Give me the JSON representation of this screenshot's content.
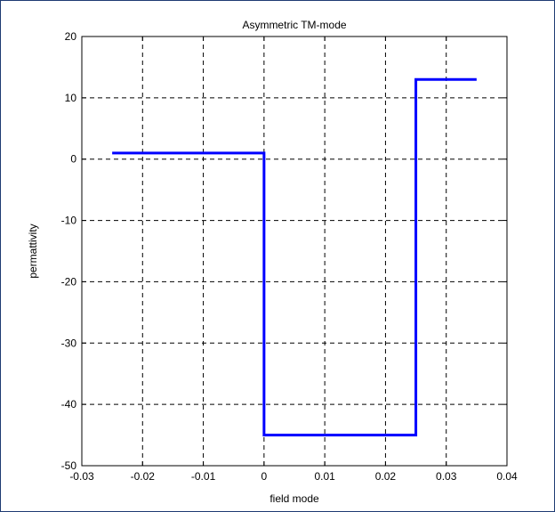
{
  "chart_data": {
    "type": "line",
    "title": "Asymmetric TM-mode",
    "xlabel": "field mode",
    "ylabel": "permattivity",
    "xlim": [
      -0.03,
      0.04
    ],
    "ylim": [
      -50,
      20
    ],
    "xticks": [
      -0.03,
      -0.02,
      -0.01,
      0,
      0.01,
      0.02,
      0.03,
      0.04
    ],
    "xtick_labels": [
      "-0.03",
      "-0.02",
      "-0.01",
      "0",
      "0.01",
      "0.02",
      "0.03",
      "0.04"
    ],
    "yticks": [
      -50,
      -40,
      -30,
      -20,
      -10,
      0,
      10,
      20
    ],
    "ytick_labels": [
      "-50",
      "-40",
      "-30",
      "-20",
      "-10",
      "0",
      "10",
      "20"
    ],
    "grid": true,
    "series": [
      {
        "color": "#0000ff",
        "x": [
          -0.025,
          0,
          0,
          0.025,
          0.025,
          0.035
        ],
        "y": [
          1,
          1,
          -45,
          -45,
          13,
          13
        ]
      }
    ]
  }
}
